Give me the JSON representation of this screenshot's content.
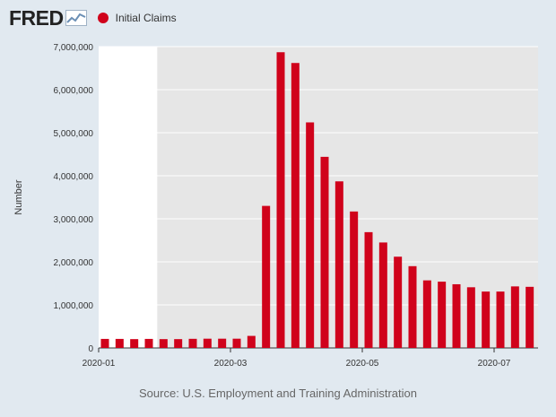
{
  "header": {
    "logo": "FRED",
    "logo_icon": "line-chart-icon"
  },
  "colors": {
    "background": "#e1e9f0",
    "plot_bg": "#e6e6e6",
    "plot_highlight": "#ffffff",
    "bar": "#d0021b"
  },
  "chart_data": {
    "type": "bar",
    "title": "",
    "xlabel": "",
    "ylabel": "Number",
    "ylim": [
      0,
      7000000
    ],
    "y_ticks": [
      0,
      1000000,
      2000000,
      3000000,
      4000000,
      5000000,
      6000000,
      7000000
    ],
    "y_tick_labels": [
      "0",
      "1,000,000",
      "2,000,000",
      "3,000,000",
      "4,000,000",
      "5,000,000",
      "6,000,000",
      "7,000,000"
    ],
    "x_ticks": [
      "2020-01-04",
      "2020-03-07",
      "2020-05-09",
      "2020-07-11"
    ],
    "x_tick_labels": [
      "2020-01",
      "2020-03",
      "2020-05",
      "2020-07"
    ],
    "highlight_range": [
      "2020-01-04",
      "2020-02-01"
    ],
    "grid": true,
    "legend_position": "top-left",
    "series": [
      {
        "name": "Initial Claims",
        "x": [
          "2020-01-04",
          "2020-01-11",
          "2020-01-18",
          "2020-01-25",
          "2020-02-01",
          "2020-02-08",
          "2020-02-15",
          "2020-02-22",
          "2020-02-29",
          "2020-03-07",
          "2020-03-14",
          "2020-03-21",
          "2020-03-28",
          "2020-04-04",
          "2020-04-11",
          "2020-04-18",
          "2020-04-25",
          "2020-05-02",
          "2020-05-09",
          "2020-05-16",
          "2020-05-23",
          "2020-05-30",
          "2020-06-06",
          "2020-06-13",
          "2020-06-20",
          "2020-06-27",
          "2020-07-04",
          "2020-07-11",
          "2020-07-18",
          "2020-07-25"
        ],
        "values": [
          210000,
          210000,
          205000,
          210000,
          205000,
          205000,
          212000,
          215000,
          215000,
          215000,
          280000,
          3300000,
          6870000,
          6620000,
          5240000,
          4440000,
          3870000,
          3170000,
          2690000,
          2450000,
          2120000,
          1900000,
          1570000,
          1540000,
          1480000,
          1410000,
          1310000,
          1310000,
          1430000,
          1420000
        ]
      }
    ]
  },
  "source": "Source: U.S. Employment and Training Administration"
}
